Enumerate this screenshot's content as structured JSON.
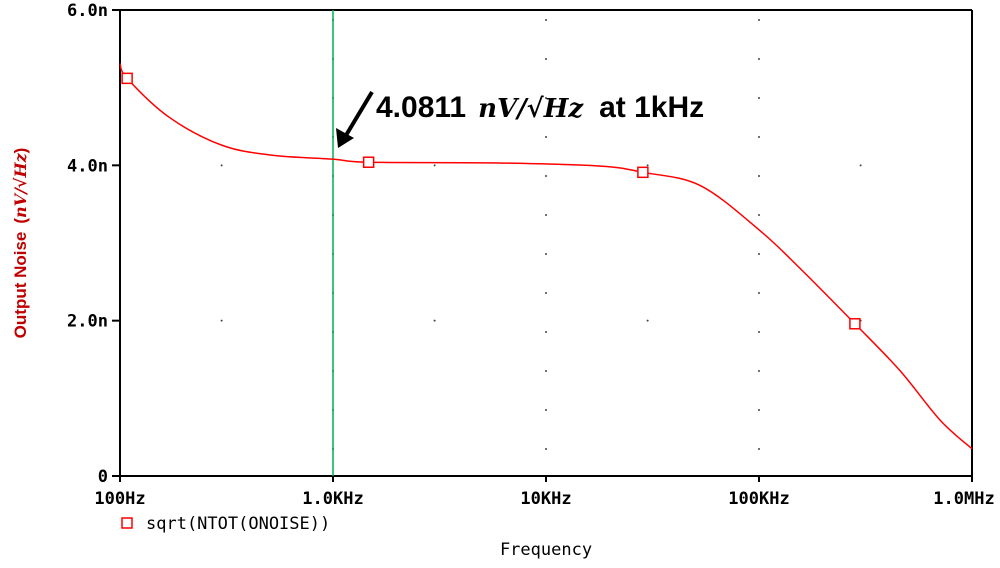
{
  "chart_data": {
    "type": "line",
    "title": "",
    "xlabel": "Frequency",
    "ylabel": "Output Noise",
    "ylabel_unit": "nV/√Hz",
    "xscale": "log",
    "xlim": [
      100,
      1000000
    ],
    "ylim": [
      0,
      6.0
    ],
    "x_ticks": [
      100,
      1000,
      10000,
      100000,
      1000000
    ],
    "x_tick_labels": [
      "100Hz",
      "1.0KHz",
      "10KHz",
      "100KHz",
      "1.0MHz"
    ],
    "y_ticks": [
      0,
      2.0,
      4.0,
      6.0
    ],
    "y_tick_labels": [
      "0",
      "2.0n",
      "4.0n",
      "6.0n"
    ],
    "grid": "dotted",
    "series": [
      {
        "name": "sqrt(NTOT(ONOISE))",
        "color": "#ff0000",
        "marker": "square",
        "x": [
          100,
          108,
          170,
          300,
          520,
          1000,
          1470,
          6000,
          18000,
          28500,
          53000,
          100000,
          155000,
          282000,
          458000,
          708000,
          1000000
        ],
        "y": [
          5.31,
          5.12,
          4.62,
          4.26,
          4.13,
          4.08,
          4.04,
          4.03,
          3.99,
          3.91,
          3.74,
          3.17,
          2.68,
          1.96,
          1.36,
          0.72,
          0.35
        ],
        "marker_x": [
          108,
          1470,
          28500,
          282000
        ]
      }
    ],
    "cursor": {
      "x": 1000,
      "color": "#00b050"
    },
    "annotation": {
      "value": "4.0811",
      "unit": "nV/√Hz",
      "suffix": "at 1kHz"
    },
    "legend": {
      "placement": "bottom-left",
      "label": "sqrt(NTOT(ONOISE))"
    }
  }
}
